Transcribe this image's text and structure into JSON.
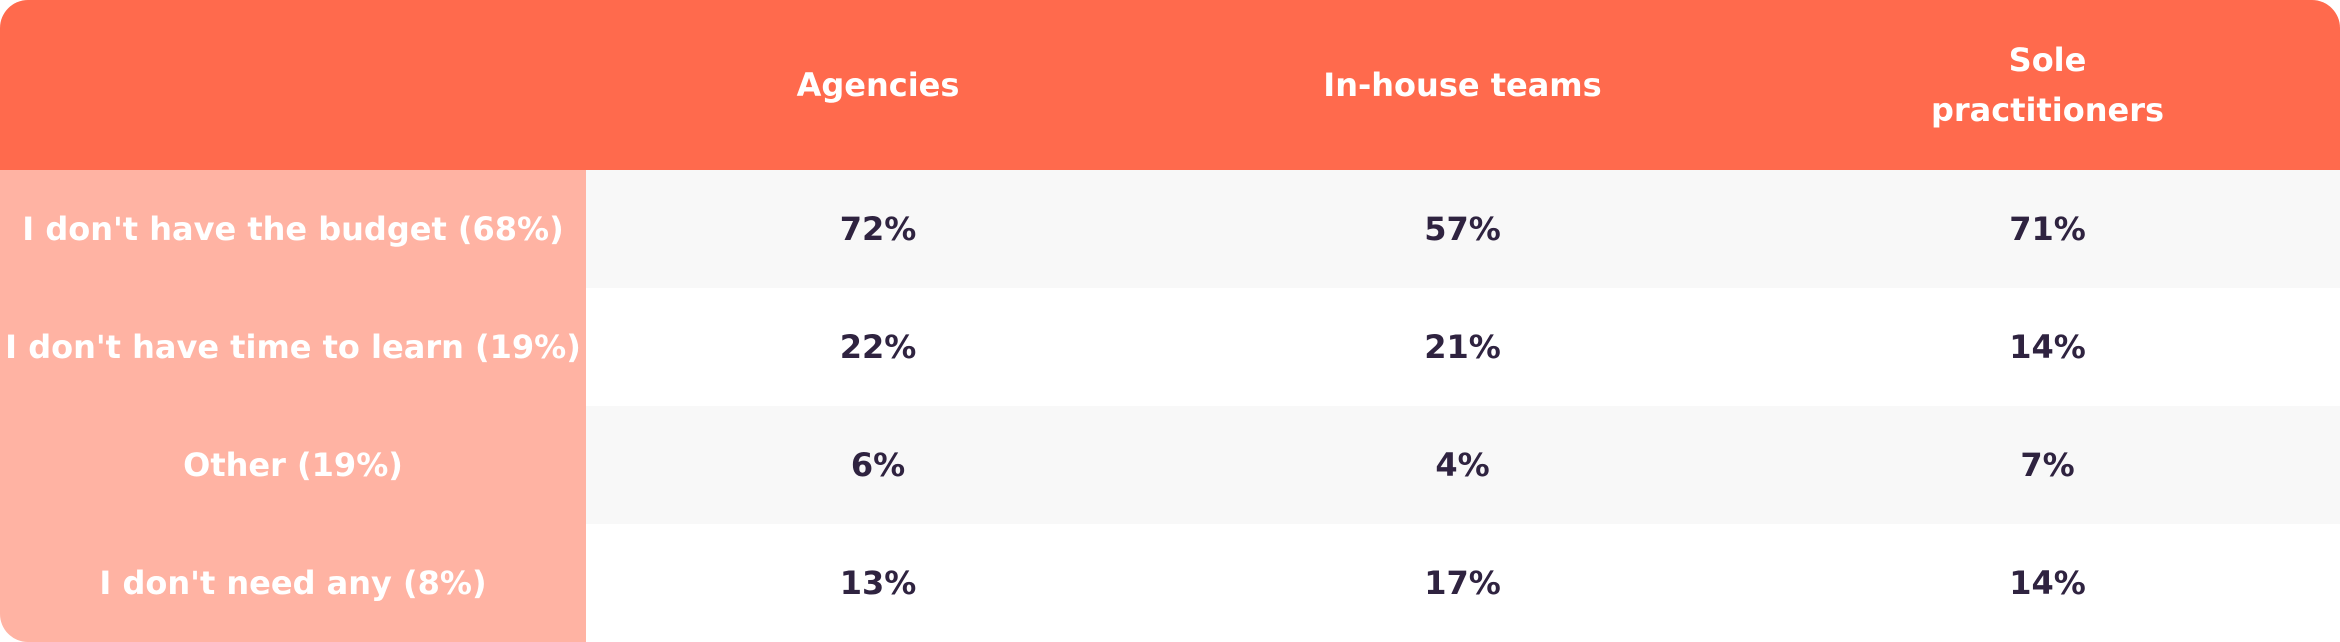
{
  "chart_data": {
    "type": "table",
    "columns": [
      "",
      "Agencies",
      "In-house teams",
      "Sole practitioners"
    ],
    "rows": [
      {
        "label": "I don't have the budget (68%)",
        "values": [
          "72%",
          "57%",
          "71%"
        ]
      },
      {
        "label": "I don't have time to learn (19%)",
        "values": [
          "22%",
          "21%",
          "14%"
        ]
      },
      {
        "label": "Other (19%)",
        "values": [
          "6%",
          "4%",
          "7%"
        ]
      },
      {
        "label": "I don't need any (8%)",
        "values": [
          "13%",
          "17%",
          "14%"
        ]
      }
    ]
  },
  "colors": {
    "header": "#ff6a4d",
    "row_label": "#ffb3a3",
    "shaded_row": "#f8f8f8",
    "value_text": "#2f2340",
    "label_text": "#ffffff"
  }
}
